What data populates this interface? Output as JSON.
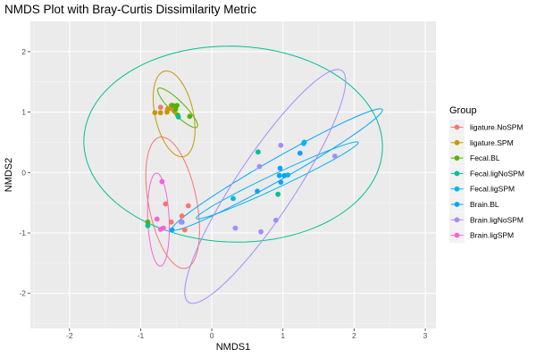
{
  "chart_data": {
    "type": "scatter",
    "title": "NMDS Plot with Bray-Curtis Dissimilarity Metric",
    "xlabel": "NMDS1",
    "ylabel": "NMDS2",
    "xlim": [
      -2.55,
      3.15
    ],
    "ylim": [
      -2.58,
      2.5
    ],
    "xticks": [
      -2,
      -1,
      0,
      1,
      2,
      3
    ],
    "yticks": [
      -2,
      -1,
      0,
      1,
      2
    ],
    "grid": true,
    "legend": {
      "title": "Group",
      "position": "right"
    },
    "series": [
      {
        "name": "ligature.NoSPM",
        "color": "#F8766D",
        "points": [
          [
            -0.72,
            1.08
          ],
          [
            -0.65,
            -0.52
          ],
          [
            -0.57,
            -0.82
          ],
          [
            -0.42,
            -0.72
          ],
          [
            -0.38,
            -0.95
          ],
          [
            -0.33,
            -0.55
          ],
          [
            -0.58,
            1.06
          ]
        ],
        "ellipse": {
          "cx": -0.55,
          "cy": -0.5,
          "rx": 1.1,
          "ry": 0.34,
          "angle_deg": -81
        }
      },
      {
        "name": "ligature.SPM",
        "color": "#C49A00",
        "points": [
          [
            -0.8,
            0.99
          ],
          [
            -0.72,
            0.99
          ],
          [
            -0.62,
            1.05
          ],
          [
            -0.57,
            1.11
          ],
          [
            -0.63,
            1.0
          ],
          [
            -0.52,
            1.02
          ]
        ],
        "ellipse": {
          "cx": -0.53,
          "cy": 0.97,
          "rx": 0.72,
          "ry": 0.27,
          "angle_deg": -80
        }
      },
      {
        "name": "Fecal.BL",
        "color": "#53B400",
        "points": [
          [
            -0.55,
            1.11
          ],
          [
            -0.49,
            1.11
          ],
          [
            -0.48,
            0.95
          ],
          [
            -0.51,
            1.05
          ],
          [
            -0.31,
            0.93
          ],
          [
            -0.9,
            -0.82
          ]
        ],
        "ellipse": {
          "cx": -0.48,
          "cy": 1.07,
          "rx": 0.42,
          "ry": 0.1,
          "angle_deg": -50
        }
      },
      {
        "name": "Fecal.ligNoSPM",
        "color": "#00C094",
        "points": [
          [
            -0.47,
            0.92
          ],
          [
            0.65,
            0.34
          ],
          [
            0.93,
            -0.36
          ],
          [
            -0.9,
            -0.88
          ]
        ],
        "ellipse": {
          "cx": 0.3,
          "cy": 0.47,
          "rx": 2.1,
          "ry": 1.62,
          "angle_deg": -3
        }
      },
      {
        "name": "Fecal.ligSPM",
        "color": "#00B6EB",
        "points": [
          [
            1.29,
            0.48
          ],
          [
            1.3,
            0.5
          ],
          [
            1.07,
            -0.04
          ],
          [
            0.3,
            -0.43
          ],
          [
            -0.42,
            -0.82
          ]
        ],
        "ellipse": {
          "cx": 0.92,
          "cy": -0.13,
          "rx": 1.3,
          "ry": 0.11,
          "angle_deg": 29
        }
      },
      {
        "name": "Brain.BL",
        "color": "#06A4FF",
        "points": [
          [
            0.96,
            0.07
          ],
          [
            1.02,
            -0.05
          ],
          [
            0.97,
            -0.16
          ],
          [
            0.95,
            -0.05
          ],
          [
            0.64,
            -0.31
          ],
          [
            1.24,
            0.32
          ],
          [
            -0.56,
            -0.95
          ]
        ],
        "ellipse": {
          "cx": 0.92,
          "cy": 0.05,
          "rx": 1.78,
          "ry": 0.17,
          "angle_deg": 34
        }
      },
      {
        "name": "Brain.ligNoSPM",
        "color": "#A58AFF",
        "points": [
          [
            0.97,
            0.45
          ],
          [
            0.67,
            0.1
          ],
          [
            1.73,
            0.27
          ],
          [
            0.33,
            -0.92
          ],
          [
            0.9,
            -0.79
          ],
          [
            0.69,
            -0.98
          ],
          [
            -0.43,
            -0.82
          ]
        ],
        "ellipse": {
          "cx": 0.75,
          "cy": -0.23,
          "rx": 2.2,
          "ry": 0.43,
          "angle_deg": 61
        }
      },
      {
        "name": "Brain.ligSPM",
        "color": "#FB61D7",
        "points": [
          [
            -0.7,
            -0.15
          ],
          [
            -0.77,
            -0.77
          ],
          [
            -0.72,
            -0.94
          ],
          [
            -0.68,
            -0.92
          ]
        ],
        "ellipse": {
          "cx": -0.75,
          "cy": -0.78,
          "rx": 0.77,
          "ry": 0.15,
          "angle_deg": -88
        }
      }
    ]
  }
}
